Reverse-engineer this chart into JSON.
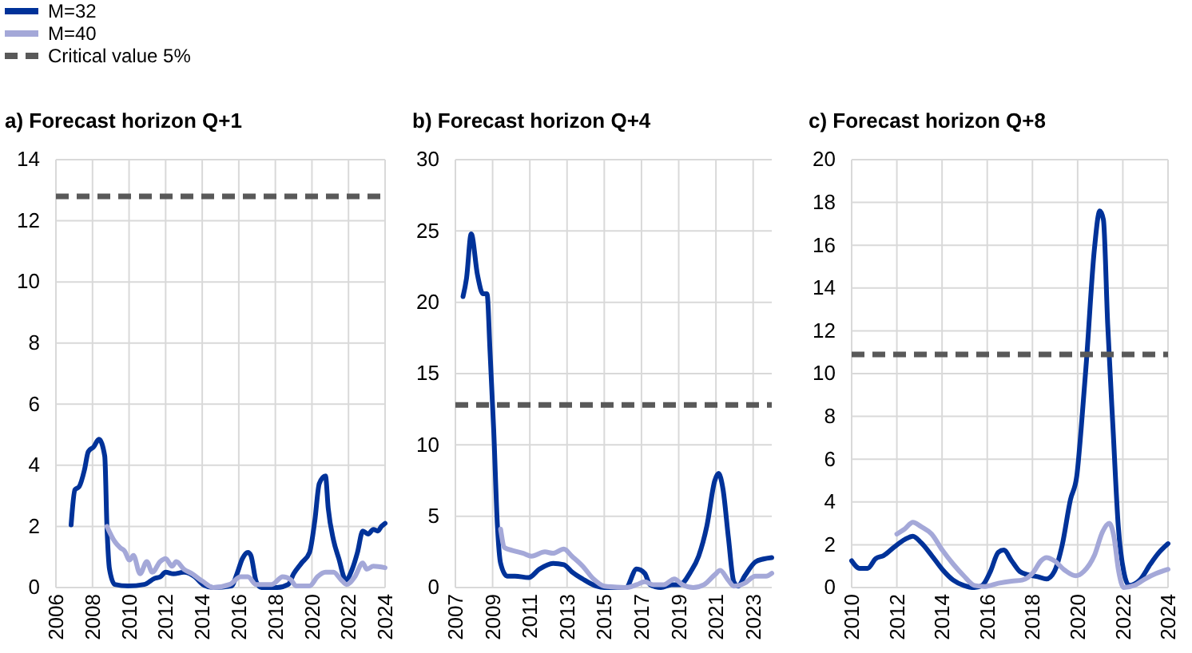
{
  "chart_data": [
    {
      "type": "line",
      "title": "a) Forecast horizon Q+1",
      "legend": "top left",
      "grid": true,
      "line_style": "solid",
      "marker": "none",
      "xlim": [
        2006,
        2024
      ],
      "xticks": [
        2006,
        2008,
        2010,
        2012,
        2014,
        2016,
        2018,
        2020,
        2022,
        2024
      ],
      "ylim": [
        0,
        14
      ],
      "yticks": [
        0,
        2,
        4,
        6,
        8,
        10,
        12,
        14
      ],
      "ref_lines": [
        {
          "axis": "y",
          "value": 12.8,
          "label": "Critical value 5%",
          "color": "#595959",
          "line_style": "dashed"
        }
      ],
      "series": [
        {
          "name": "M=32",
          "color": "#003299",
          "x": [
            2006.83,
            2007.04,
            2007.27,
            2007.56,
            2007.77,
            2008.06,
            2008.35,
            2008.67,
            2008.79,
            2008.93,
            2009.22,
            2009.95,
            2010.83,
            2011.4,
            2011.7,
            2012,
            2012.43,
            2013,
            2013.6,
            2014.03,
            2014.6,
            2015.6,
            2015.9,
            2016.2,
            2016.5,
            2016.66,
            2016.95,
            2017.24,
            2018.1,
            2018.7,
            2019,
            2019.43,
            2019.87,
            2020.16,
            2020.4,
            2020.74,
            2020.89,
            2021.18,
            2021.47,
            2021.85,
            2022.2,
            2022.49,
            2022.78,
            2023.07,
            2023.36,
            2023.6,
            2023.8,
            2024
          ],
          "values": [
            2.05,
            3.2,
            3.3,
            3.85,
            4.45,
            4.6,
            4.85,
            4.3,
            2.0,
            0.6,
            0.1,
            0.05,
            0.1,
            0.3,
            0.35,
            0.5,
            0.45,
            0.5,
            0.35,
            0.1,
            0,
            0.05,
            0.45,
            0.95,
            1.15,
            1.05,
            0.2,
            0,
            0,
            0.1,
            0.45,
            0.8,
            1.15,
            2.2,
            3.4,
            3.65,
            2.6,
            1.55,
            0.95,
            0.25,
            0.6,
            1.15,
            1.85,
            1.75,
            1.9,
            1.85,
            2.0,
            2.1
          ]
        },
        {
          "name": "M=40",
          "color": "#a4a8d8",
          "x": [
            2008.79,
            2009.22,
            2009.52,
            2009.75,
            2010.02,
            2010.24,
            2010.6,
            2010.97,
            2011.27,
            2011.7,
            2012,
            2012.35,
            2012.58,
            2013,
            2013.45,
            2014.03,
            2014.6,
            2015.5,
            2016.1,
            2016.5,
            2016.95,
            2017.8,
            2018.4,
            2018.85,
            2019.14,
            2019.87,
            2020.3,
            2020.74,
            2021.18,
            2021.6,
            2021.9,
            2022.34,
            2022.78,
            2023,
            2023.36,
            2024
          ],
          "values": [
            2.0,
            1.5,
            1.3,
            1.2,
            0.9,
            1.05,
            0.45,
            0.85,
            0.5,
            0.85,
            0.95,
            0.7,
            0.85,
            0.6,
            0.45,
            0.2,
            0,
            0.1,
            0.35,
            0.35,
            0.1,
            0.1,
            0.35,
            0.25,
            0.05,
            0.05,
            0.35,
            0.5,
            0.5,
            0.25,
            0.1,
            0.35,
            0.8,
            0.6,
            0.7,
            0.65
          ]
        }
      ]
    },
    {
      "type": "line",
      "title": "b) Forecast horizon Q+4",
      "grid": true,
      "line_style": "solid",
      "marker": "none",
      "xlim": [
        2007,
        2024
      ],
      "xticks": [
        2007,
        2009,
        2011,
        2013,
        2015,
        2017,
        2019,
        2021,
        2023
      ],
      "ylim": [
        0,
        30
      ],
      "yticks": [
        0,
        5,
        10,
        15,
        20,
        25,
        30
      ],
      "ref_lines": [
        {
          "axis": "y",
          "value": 12.8,
          "color": "#595959",
          "line_style": "dashed"
        }
      ],
      "series": [
        {
          "color": "#003299",
          "x": [
            2007.41,
            2007.6,
            2007.85,
            2008.19,
            2008.48,
            2008.7,
            2008.86,
            2009.06,
            2009.26,
            2009.43,
            2009.78,
            2010.2,
            2010.94,
            2011.52,
            2012.25,
            2012.83,
            2013.26,
            2013.84,
            2014.57,
            2015,
            2016.16,
            2016.74,
            2017.17,
            2017.46,
            2018.04,
            2018.62,
            2019.06,
            2019.64,
            2020.07,
            2020.51,
            2020.94,
            2021.14,
            2021.38,
            2021.67,
            2021.96,
            2022.19,
            2022.54,
            2023.12,
            2023.55,
            2024
          ],
          "values": [
            20.4,
            21.7,
            24.8,
            21.9,
            20.6,
            20.6,
            16.6,
            11.0,
            4.3,
            1.7,
            0.8,
            0.8,
            0.7,
            1.3,
            1.7,
            1.6,
            1.1,
            0.6,
            0.1,
            0,
            0,
            1.3,
            1.0,
            0.2,
            0,
            0.2,
            0.2,
            1.1,
            2.2,
            4.3,
            7.5,
            8.0,
            6.9,
            3.5,
            0.4,
            0.1,
            0.8,
            1.8,
            2.0,
            2.1
          ]
        },
        {
          "color": "#a4a8d8",
          "x": [
            2009.43,
            2009.64,
            2010.07,
            2010.65,
            2011.09,
            2011.81,
            2012.25,
            2012.83,
            2013.26,
            2013.84,
            2014.42,
            2015,
            2016.16,
            2016.74,
            2017.17,
            2017.61,
            2018.19,
            2018.77,
            2019.2,
            2019.78,
            2020.36,
            2020.94,
            2021.23,
            2021.67,
            2021.96,
            2022.54,
            2023.12,
            2023.7,
            2024
          ],
          "values": [
            4.1,
            2.8,
            2.6,
            2.4,
            2.2,
            2.5,
            2.4,
            2.7,
            2.2,
            1.5,
            0.6,
            0.1,
            0,
            0.2,
            0.4,
            0.2,
            0.2,
            0.6,
            0.2,
            0,
            0.2,
            0.9,
            1.2,
            0.5,
            0.1,
            0.3,
            0.8,
            0.8,
            1.0
          ]
        }
      ]
    },
    {
      "type": "line",
      "title": "c) Forecast horizon Q+8",
      "grid": true,
      "line_style": "solid",
      "marker": "none",
      "xlim": [
        2010,
        2024
      ],
      "xticks": [
        2010,
        2012,
        2014,
        2016,
        2018,
        2020,
        2022,
        2024
      ],
      "ylim": [
        0,
        20
      ],
      "yticks": [
        0,
        2,
        4,
        6,
        8,
        10,
        12,
        14,
        16,
        18,
        20
      ],
      "ref_lines": [
        {
          "axis": "y",
          "value": 10.9,
          "color": "#595959",
          "line_style": "dashed"
        }
      ],
      "series": [
        {
          "color": "#003299",
          "x": [
            2010,
            2010.35,
            2010.71,
            2011.06,
            2011.42,
            2011.89,
            2012.36,
            2012.71,
            2013.07,
            2013.54,
            2014.01,
            2014.49,
            2014.96,
            2015.43,
            2015.78,
            2016.14,
            2016.49,
            2016.73,
            2017.08,
            2017.44,
            2017.79,
            2018.26,
            2018.62,
            2018.97,
            2019.32,
            2019.68,
            2019.96,
            2020.15,
            2020.39,
            2020.74,
            2020.98,
            2021.14,
            2021.33,
            2021.57,
            2021.8,
            2022.04,
            2022.28,
            2022.75,
            2023.22,
            2023.57,
            2024
          ],
          "values": [
            1.25,
            0.9,
            0.9,
            1.35,
            1.5,
            1.9,
            2.25,
            2.4,
            2.1,
            1.5,
            0.85,
            0.35,
            0.1,
            0,
            0.1,
            0.75,
            1.65,
            1.75,
            1.25,
            0.75,
            0.6,
            0.5,
            0.4,
            0.75,
            2.0,
            4.1,
            5.2,
            7.35,
            10.6,
            15.8,
            17.6,
            17.2,
            12.3,
            7.35,
            2.85,
            0.75,
            0.1,
            0.35,
            1.1,
            1.6,
            2.05
          ]
        },
        {
          "color": "#a4a8d8",
          "x": [
            2012,
            2012.36,
            2012.71,
            2013.07,
            2013.54,
            2014.01,
            2014.49,
            2014.96,
            2015.43,
            2015.9,
            2016.49,
            2017.08,
            2017.55,
            2018.03,
            2018.38,
            2018.62,
            2018.97,
            2019.44,
            2019.92,
            2020.27,
            2020.74,
            2021.1,
            2021.4,
            2021.61,
            2021.8,
            2022.04,
            2022.51,
            2022.98,
            2023.46,
            2024
          ],
          "values": [
            2.5,
            2.75,
            3.05,
            2.85,
            2.5,
            1.75,
            1.1,
            0.55,
            0.1,
            0.05,
            0.2,
            0.3,
            0.35,
            0.7,
            1.25,
            1.4,
            1.25,
            0.8,
            0.55,
            0.75,
            1.5,
            2.6,
            3.0,
            2.35,
            0.85,
            0,
            0.1,
            0.4,
            0.65,
            0.85
          ]
        }
      ]
    }
  ]
}
